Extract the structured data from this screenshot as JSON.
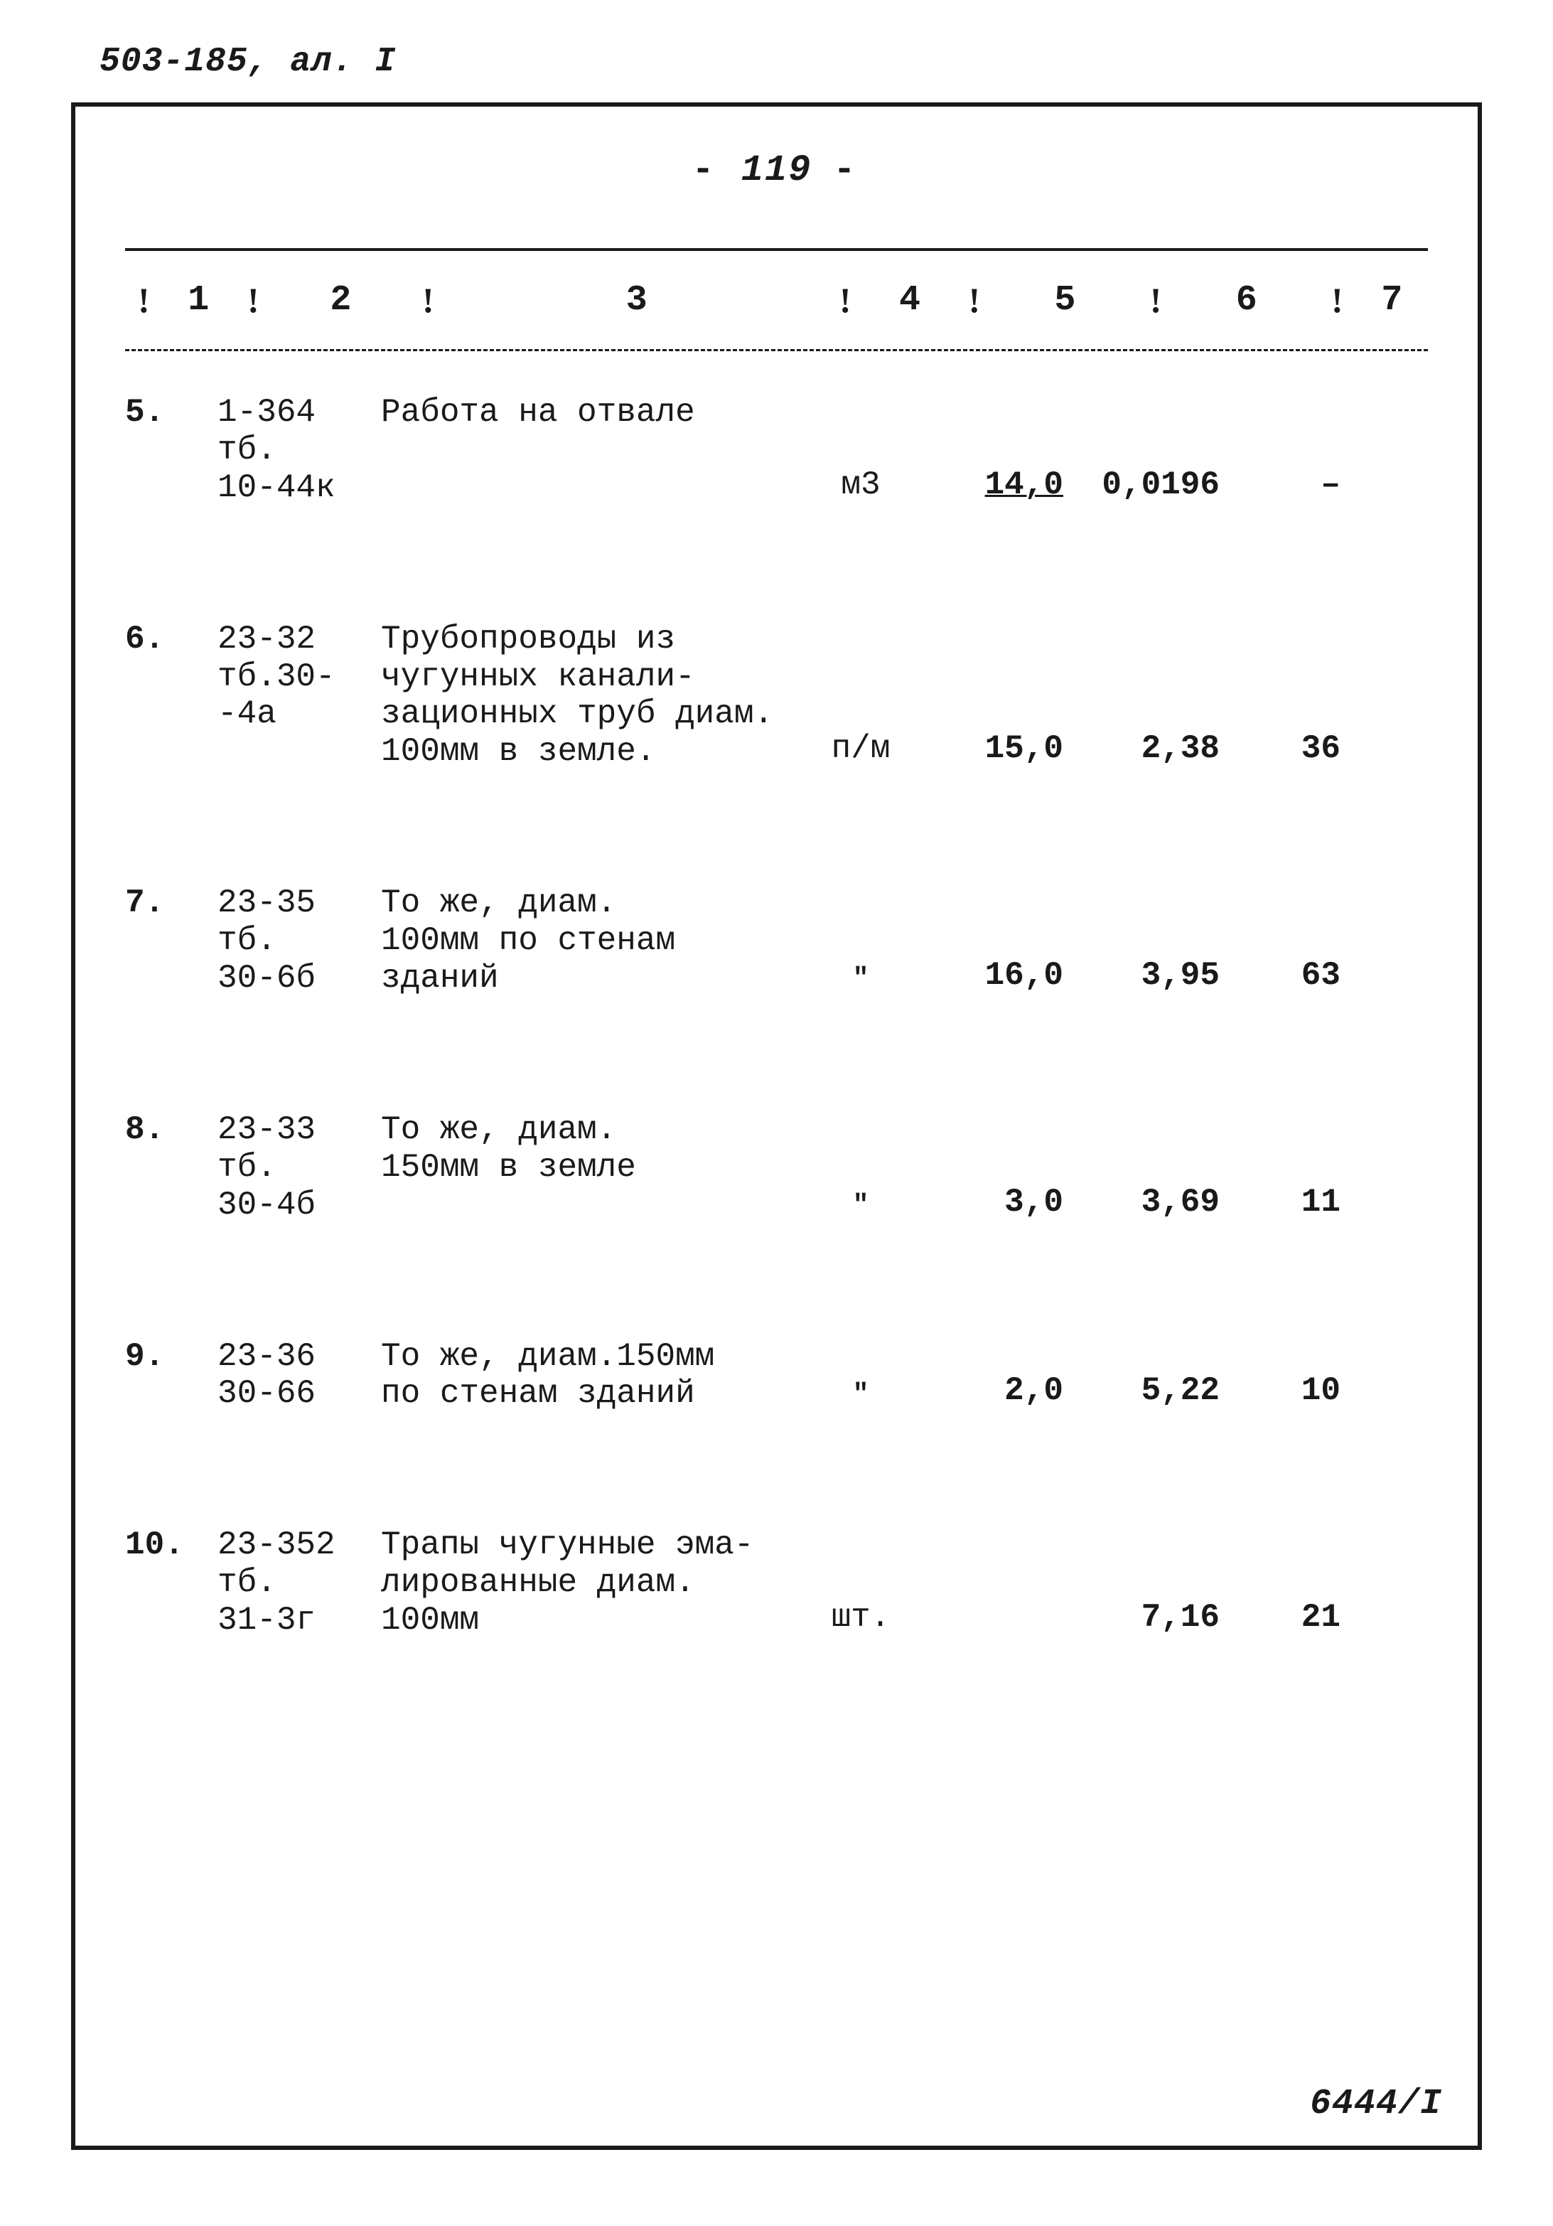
{
  "header_note": "503-185, ал. I",
  "page_number": "119",
  "columns": {
    "c1": "1",
    "c2": "2",
    "c3": "3",
    "c4": "4",
    "c5": "5",
    "c6": "6",
    "c7": "7"
  },
  "rows": [
    {
      "num": "5.",
      "code": "1-364\nтб.\n10-44к",
      "desc": "Работа на отвале",
      "unit": "м3",
      "qty": "14,0",
      "rate": "0,0196",
      "amt": "–"
    },
    {
      "num": "6.",
      "code": "23-32\nтб.30-\n-4а",
      "desc": "Трубопроводы из\nчугунных канали-\nзационных труб диам.\n100мм в земле.",
      "unit": "п/м",
      "qty": "15,0",
      "rate": "2,38",
      "amt": "36"
    },
    {
      "num": "7.",
      "code": "23-35\nтб.\n30-6б",
      "desc": "То же, диам.\n100мм по стенам\nзданий",
      "unit": "\"",
      "qty": "16,0",
      "rate": "3,95",
      "amt": "63"
    },
    {
      "num": "8.",
      "code": "23-33\nтб.\n30-4б",
      "desc": "То же, диам.\n150мм в земле",
      "unit": "\"",
      "qty": "3,0",
      "rate": "3,69",
      "amt": "11"
    },
    {
      "num": "9.",
      "code": "23-36\n30-66",
      "desc": "То же, диам.150мм\nпо стенам зданий",
      "unit": "\"",
      "qty": "2,0",
      "rate": "5,22",
      "amt": "10"
    },
    {
      "num": "10.",
      "code": "23-352\nтб.\n31-3г",
      "desc": "Трапы чугунные эма-\nлированные диам.\n100мм",
      "unit": "шт.",
      "qty": "",
      "rate": "7,16",
      "amt": "21"
    }
  ],
  "footer_note": "6444/I"
}
